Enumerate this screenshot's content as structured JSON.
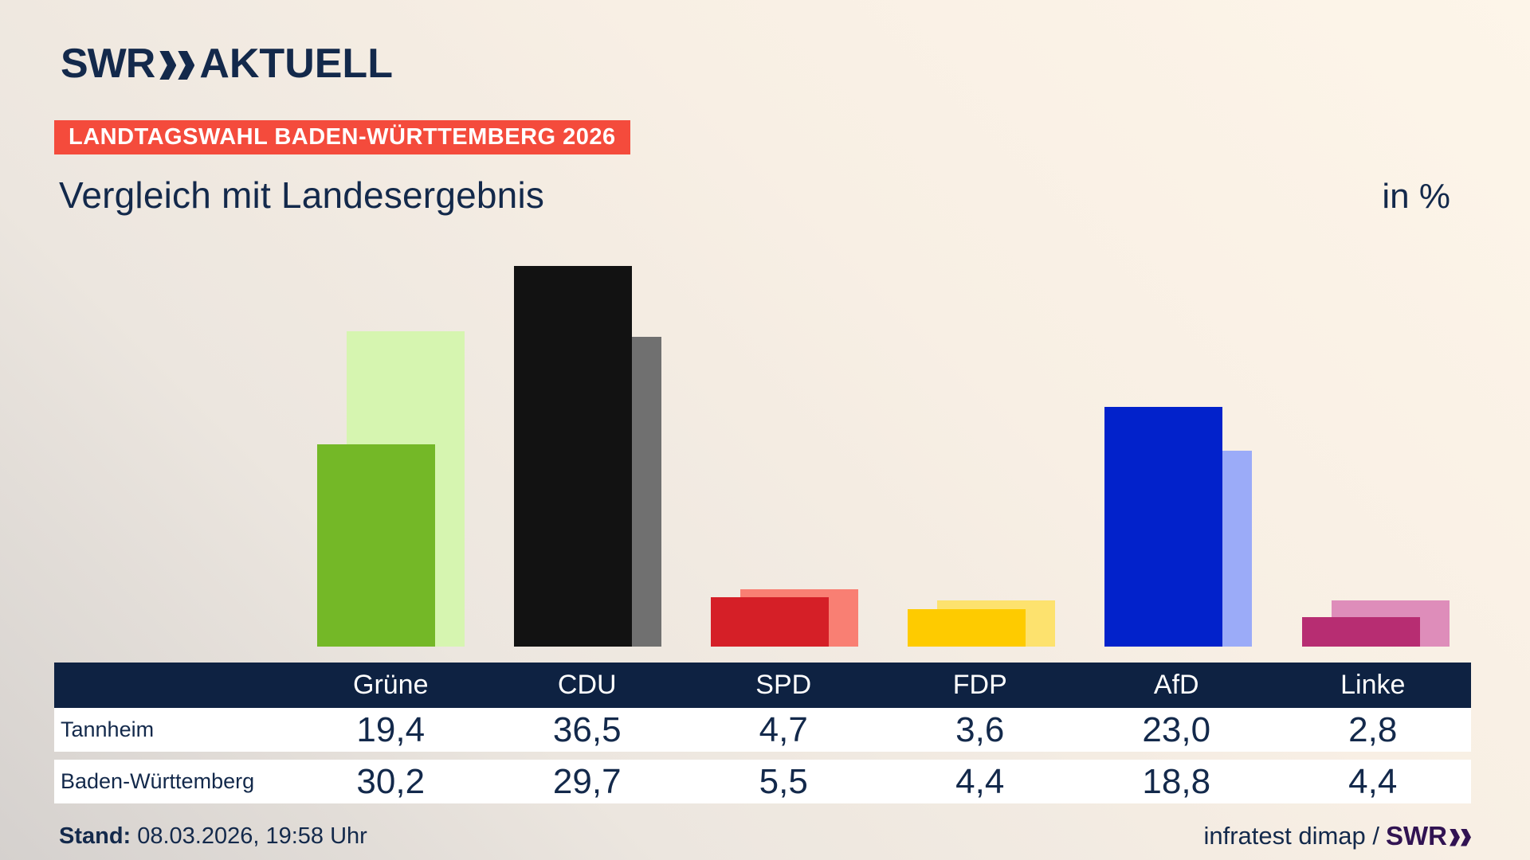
{
  "header": {
    "logo": {
      "brand": "SWR",
      "suffix": "AKTUELL",
      "chevron_icon": "double-chevron-right"
    },
    "badge": "LANDTAGSWAHL BADEN-WÜRTTEMBERG 2026",
    "title": "Vergleich mit Landesergebnis",
    "unit_label": "in %"
  },
  "chart_data": {
    "type": "bar",
    "title": "Vergleich mit Landesergebnis",
    "unit": "%",
    "ylim": [
      0,
      40
    ],
    "grid": false,
    "legend_position": "table-below",
    "categories": [
      "Grüne",
      "CDU",
      "SPD",
      "FDP",
      "AfD",
      "Linke"
    ],
    "series": [
      {
        "name": "Tannheim",
        "role": "front",
        "values": [
          19.4,
          36.5,
          4.7,
          3.6,
          23.0,
          2.8
        ],
        "labels": [
          "19,4",
          "36,5",
          "4,7",
          "3,6",
          "23,0",
          "2,8"
        ],
        "colors": [
          "#74b827",
          "#121212",
          "#d51f27",
          "#fecb00",
          "#0222cb",
          "#b72d72"
        ]
      },
      {
        "name": "Baden-Württemberg",
        "role": "back",
        "values": [
          30.2,
          29.7,
          5.5,
          4.4,
          18.8,
          4.4
        ],
        "labels": [
          "30,2",
          "29,7",
          "5,5",
          "4,4",
          "18,8",
          "4,4"
        ],
        "colors": [
          "#d6f5b0",
          "#707070",
          "#f97f73",
          "#fde26e",
          "#9babf8",
          "#de8dba"
        ]
      }
    ]
  },
  "footer": {
    "stand_label": "Stand:",
    "stand_value": "08.03.2026, 19:58 Uhr",
    "source_text": "infratest dimap /",
    "source_brand": "SWR",
    "source_chevron_icon": "double-chevron-right"
  },
  "colors": {
    "navy": "#13294b",
    "table_header_bg": "#0e2242",
    "badge_bg": "#f44b3c",
    "row_bg": "#ffffff",
    "brand_purple": "#311352"
  }
}
